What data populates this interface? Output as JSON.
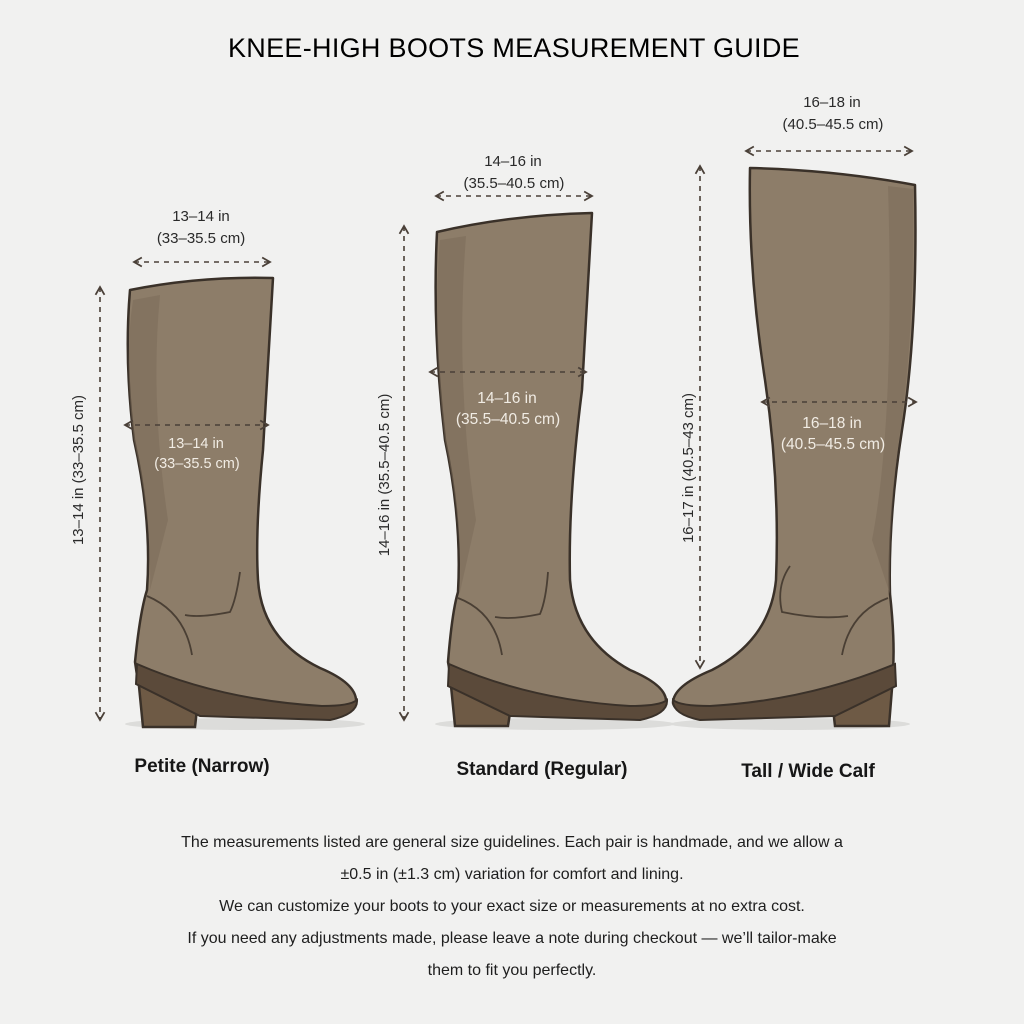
{
  "title": "KNEE-HIGH BOOTS MEASUREMENT GUIDE",
  "boots": [
    {
      "label": "Petite (Narrow)",
      "top_in": "13–14 in",
      "top_cm": "(33–35.5 cm)",
      "calf_in": "13–14 in",
      "calf_cm": "(33–35.5 cm)",
      "height": "13–14 in (33–35.5 cm)"
    },
    {
      "label": "Standard (Regular)",
      "top_in": "14–16 in",
      "top_cm": "(35.5–40.5 cm)",
      "calf_in": "14–16 in",
      "calf_cm": "(35.5–40.5 cm)",
      "height": "14–16 in (35.5–40.5 cm)"
    },
    {
      "label": "Tall / Wide Calf",
      "top_in": "16–18 in",
      "top_cm": "(40.5–45.5 cm)",
      "calf_in": "16–18 in",
      "calf_cm": "(40.5–45.5 cm)",
      "height": "16–17 in (40.5–43 cm)"
    }
  ],
  "notes": [
    "The measurements listed are general size guidelines. Each pair is handmade, and we allow a",
    "±0.5 in (±1.3 cm) variation for comfort and lining.",
    "We can customize your boots to your exact size or measurements at no extra cost.",
    "If you need any adjustments made, please leave a note during checkout — we’ll tailor-make",
    "them to fit you perfectly."
  ],
  "colors": {
    "background": "#f1f1f0",
    "boot": "#8d7d69",
    "heel": "#6e5a45",
    "outline": "#3a3129"
  }
}
